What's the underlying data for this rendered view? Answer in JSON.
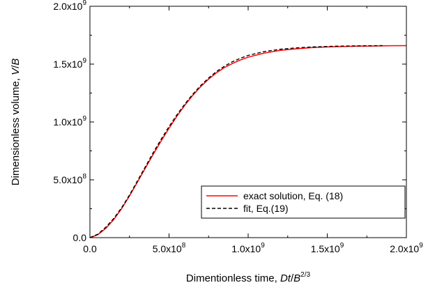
{
  "chart_data": {
    "type": "line",
    "title": "",
    "xlabel": {
      "prefix": "Dimentionless time, ",
      "var": "Dt",
      "sep": "/",
      "base": "B",
      "exp": "2/3"
    },
    "ylabel": {
      "prefix": "Dimensionless volume, ",
      "var": "V",
      "sep": "/",
      "base": "B"
    },
    "xlim": [
      0,
      2000000000
    ],
    "ylim": [
      0,
      2000000000
    ],
    "x_ticks": [
      {
        "value": 0,
        "mant": "0.0",
        "exp": ""
      },
      {
        "value": 500000000,
        "mant": "5.0x10",
        "exp": "8"
      },
      {
        "value": 1000000000,
        "mant": "1.0x10",
        "exp": "9"
      },
      {
        "value": 1500000000,
        "mant": "1.5x10",
        "exp": "9"
      },
      {
        "value": 2000000000,
        "mant": "2.0x10",
        "exp": "9"
      }
    ],
    "y_ticks": [
      {
        "value": 0,
        "mant": "0.0",
        "exp": ""
      },
      {
        "value": 500000000,
        "mant": "5.0x10",
        "exp": "8"
      },
      {
        "value": 1000000000,
        "mant": "1.0x10",
        "exp": "9"
      },
      {
        "value": 1500000000,
        "mant": "1.5x10",
        "exp": "9"
      },
      {
        "value": 2000000000,
        "mant": "2.0x10",
        "exp": "9"
      }
    ],
    "grid": false,
    "legend_position": "bottom-right",
    "series": [
      {
        "name": "exact solution, Eq. (18)",
        "color": "#ff0000",
        "style": "solid",
        "x": [
          0,
          50000000,
          100000000,
          150000000,
          200000000,
          250000000,
          300000000,
          350000000,
          400000000,
          450000000,
          500000000,
          550000000,
          600000000,
          650000000,
          700000000,
          750000000,
          800000000,
          850000000,
          900000000,
          950000000,
          1000000000,
          1100000000,
          1200000000,
          1300000000,
          1400000000,
          1500000000,
          1600000000,
          1700000000,
          1800000000,
          1900000000,
          2000000000
        ],
        "y": [
          0,
          25000000,
          80000000,
          155000000,
          250000000,
          360000000,
          480000000,
          600000000,
          720000000,
          835000000,
          945000000,
          1050000000,
          1145000000,
          1230000000,
          1305000000,
          1370000000,
          1425000000,
          1470000000,
          1505000000,
          1535000000,
          1560000000,
          1595000000,
          1618000000,
          1632000000,
          1642000000,
          1648000000,
          1652000000,
          1655000000,
          1657000000,
          1659000000,
          1660000000
        ]
      },
      {
        "name": "fit, Eq.(19)",
        "color": "#000000",
        "style": "dashed",
        "x": [
          0,
          50000000,
          100000000,
          150000000,
          200000000,
          250000000,
          300000000,
          350000000,
          400000000,
          450000000,
          500000000,
          550000000,
          600000000,
          650000000,
          700000000,
          750000000,
          800000000,
          850000000,
          900000000,
          950000000,
          1000000000,
          1100000000,
          1200000000,
          1300000000,
          1400000000,
          1500000000,
          1600000000,
          1700000000,
          1800000000,
          1850000000
        ],
        "y": [
          0,
          30000000,
          90000000,
          165000000,
          258000000,
          368000000,
          490000000,
          612000000,
          735000000,
          850000000,
          960000000,
          1062000000,
          1155000000,
          1240000000,
          1315000000,
          1380000000,
          1436000000,
          1482000000,
          1520000000,
          1550000000,
          1575000000,
          1608000000,
          1628000000,
          1640000000,
          1648000000,
          1653000000,
          1656000000,
          1658000000,
          1659000000,
          1660000000
        ]
      }
    ]
  }
}
